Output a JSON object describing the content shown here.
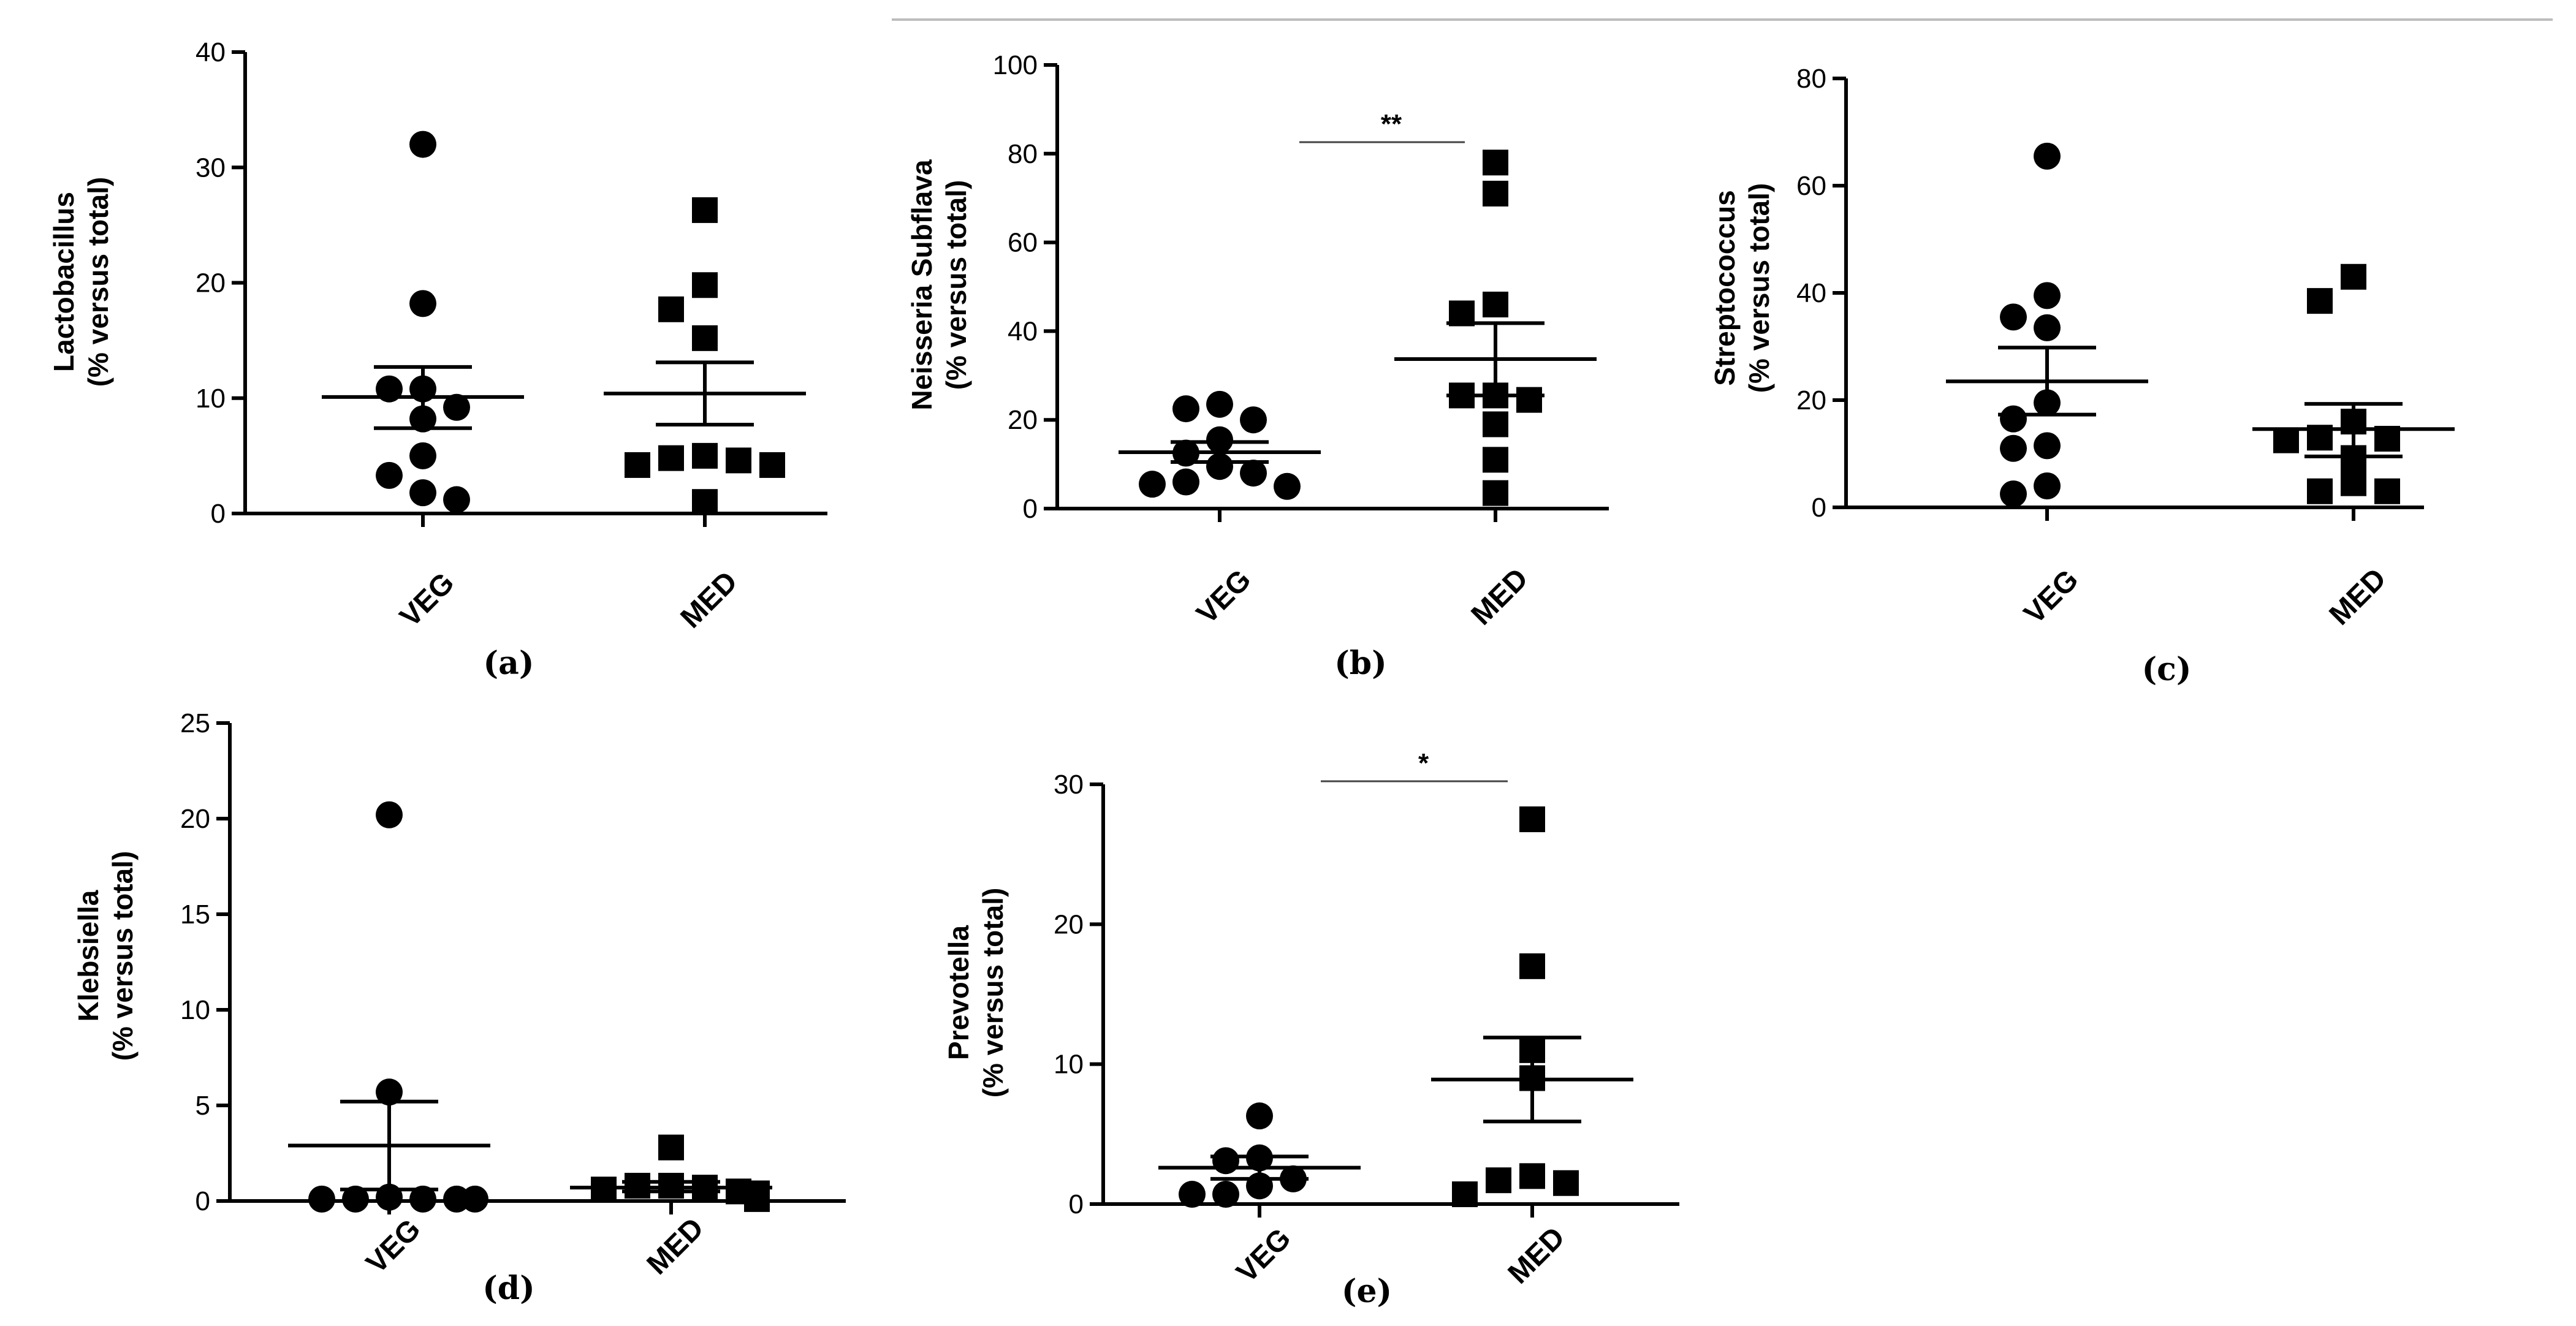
{
  "chart_data": [
    {
      "id": "a",
      "type": "scatter",
      "panel_label": "(a)",
      "ylabel_lines": [
        "Lactobacillus",
        "(% versus total)"
      ],
      "ylim": [
        0,
        40
      ],
      "yticks": [
        0,
        10,
        20,
        30,
        40
      ],
      "tick_labels": [
        "0",
        "10",
        "20",
        "30",
        "40"
      ],
      "categories": [
        "VEG",
        "MED"
      ],
      "significance": "",
      "series": [
        {
          "name": "VEG",
          "marker": "circle",
          "values": [
            32,
            18.2,
            10.8,
            10.8,
            9.2,
            8.2,
            5,
            3.3,
            1.8,
            1.2
          ],
          "mean": 10.1,
          "sem_low": 7.4,
          "sem_high": 12.7
        },
        {
          "name": "MED",
          "marker": "square",
          "values": [
            26.3,
            19.8,
            17.7,
            15.2,
            5,
            4.8,
            4.6,
            4.2,
            4.2,
            1
          ],
          "mean": 10.4,
          "sem_low": 7.7,
          "sem_high": 13.1
        }
      ]
    },
    {
      "id": "b",
      "type": "scatter",
      "panel_label": "(b)",
      "ylabel_lines": [
        "Neisseria Subflava",
        "(% versus total)"
      ],
      "ylim": [
        0,
        100
      ],
      "yticks": [
        0,
        20,
        40,
        60,
        80,
        100
      ],
      "tick_labels": [
        "0",
        "20",
        "40",
        "60",
        "80",
        "100"
      ],
      "categories": [
        "VEG",
        "MED"
      ],
      "significance": "**",
      "series": [
        {
          "name": "VEG",
          "marker": "circle",
          "values": [
            23.5,
            22.5,
            20,
            15.5,
            12.5,
            9.5,
            8,
            6,
            5.5,
            5
          ],
          "mean": 12.7,
          "sem_low": 10.5,
          "sem_high": 15
        },
        {
          "name": "MED",
          "marker": "square",
          "values": [
            78,
            71,
            46,
            44,
            25.5,
            25.5,
            24.5,
            19,
            11,
            3.5
          ],
          "mean": 33.7,
          "sem_low": 25.5,
          "sem_high": 41.8
        }
      ]
    },
    {
      "id": "c",
      "type": "scatter",
      "panel_label": "(c)",
      "ylabel_lines": [
        "Streptococcus",
        "(% versus total)"
      ],
      "ylim": [
        0,
        80
      ],
      "yticks": [
        0,
        20,
        40,
        60,
        80
      ],
      "tick_labels": [
        "0",
        "20",
        "40",
        "60",
        "80"
      ],
      "categories": [
        "VEG",
        "MED"
      ],
      "significance": "",
      "series": [
        {
          "name": "VEG",
          "marker": "circle",
          "values": [
            65.5,
            39.5,
            35.5,
            33.5,
            19.5,
            16.5,
            11.5,
            11,
            4,
            2.5
          ],
          "mean": 23.5,
          "sem_low": 17.3,
          "sem_high": 29.8
        },
        {
          "name": "MED",
          "marker": "square",
          "values": [
            43,
            38.5,
            16,
            13,
            12.8,
            12.5,
            9.2,
            4.5,
            3,
            3
          ],
          "mean": 14.6,
          "sem_low": 9.5,
          "sem_high": 19.3
        }
      ]
    },
    {
      "id": "d",
      "type": "scatter",
      "panel_label": "(d)",
      "ylabel_lines": [
        "Klebsiella",
        "(% versus total)"
      ],
      "ylim": [
        0,
        25
      ],
      "yticks": [
        0,
        5,
        10,
        15,
        20,
        25
      ],
      "tick_labels": [
        "0",
        "5",
        "10",
        "15",
        "20",
        "25"
      ],
      "categories": [
        "VEG",
        "MED"
      ],
      "significance": "",
      "series": [
        {
          "name": "VEG",
          "marker": "circle",
          "values": [
            20.2,
            5.7,
            0.2,
            0.1,
            0.1,
            0.1,
            0.1,
            0.1
          ],
          "mean": 2.9,
          "sem_low": 0.6,
          "sem_high": 5.2
        },
        {
          "name": "MED",
          "marker": "square",
          "values": [
            2.8,
            0.8,
            0.8,
            0.7,
            0.6,
            0.5,
            0.4,
            0.3,
            0.2,
            0.1
          ],
          "mean": 0.7,
          "sem_low": 0.5,
          "sem_high": 1.0
        }
      ]
    },
    {
      "id": "e",
      "type": "scatter",
      "panel_label": "(e)",
      "ylabel_lines": [
        "Prevotella",
        "(% versus total)"
      ],
      "ylim": [
        0,
        30
      ],
      "yticks": [
        0,
        10,
        20,
        30
      ],
      "tick_labels": [
        "0",
        "10",
        "20",
        "30"
      ],
      "categories": [
        "VEG",
        "MED"
      ],
      "significance": "*",
      "series": [
        {
          "name": "VEG",
          "marker": "circle",
          "values": [
            6.3,
            3.3,
            3.1,
            1.8,
            1.3,
            0.7,
            0.7
          ],
          "mean": 2.6,
          "sem_low": 1.8,
          "sem_high": 3.4
        },
        {
          "name": "MED",
          "marker": "square",
          "values": [
            27.5,
            17,
            11,
            9,
            2,
            1.7,
            1.5,
            0.7
          ],
          "mean": 8.9,
          "sem_low": 5.9,
          "sem_high": 11.9
        }
      ]
    }
  ]
}
